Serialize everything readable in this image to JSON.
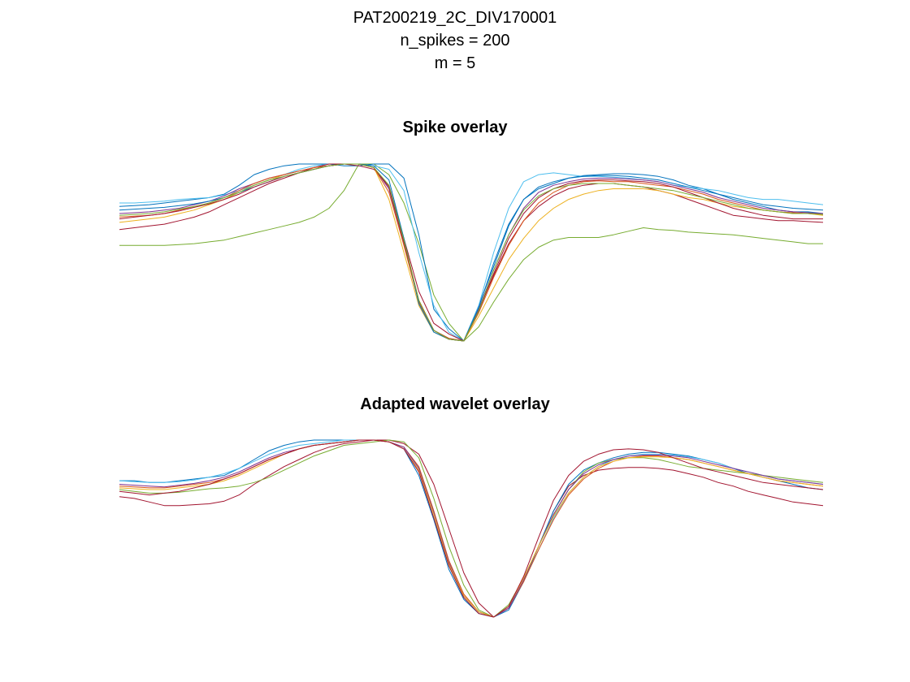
{
  "figure": {
    "suptitle_lines": [
      "PAT200219_2C_DIV170001",
      "n_spikes = 200",
      "m = 5"
    ]
  },
  "colors": {
    "series_palette": [
      "#0072BD",
      "#D95319",
      "#EDB120",
      "#7E2F8E",
      "#77AC30",
      "#4DBEEE",
      "#A2142F"
    ]
  },
  "chart_data": [
    {
      "type": "line",
      "title": "Spike overlay",
      "xlabel": "",
      "ylabel": "",
      "axis_visible": false,
      "grid": false,
      "n_samples": 48,
      "trough_index": 23,
      "xlim": [
        0,
        47
      ],
      "ylim": [
        -1.0,
        0.1
      ],
      "series": [
        {
          "color": "#77AC30",
          "values": [
            -0.46,
            -0.46,
            -0.46,
            -0.46,
            -0.455,
            -0.45,
            -0.44,
            -0.43,
            -0.41,
            -0.39,
            -0.37,
            -0.35,
            -0.33,
            -0.3,
            -0.25,
            -0.15,
            0.0,
            0.0,
            -0.06,
            -0.22,
            -0.45,
            -0.74,
            -0.9,
            -1.0,
            -0.92,
            -0.78,
            -0.65,
            -0.54,
            -0.47,
            -0.43,
            -0.415,
            -0.415,
            -0.415,
            -0.4,
            -0.38,
            -0.36,
            -0.37,
            -0.375,
            -0.385,
            -0.39,
            -0.395,
            -0.4,
            -0.41,
            -0.42,
            -0.43,
            -0.44,
            -0.45,
            -0.45
          ]
        },
        {
          "color": "#0072BD",
          "values": [
            -0.24,
            -0.235,
            -0.23,
            -0.22,
            -0.21,
            -0.2,
            -0.19,
            -0.17,
            -0.12,
            -0.06,
            -0.03,
            -0.01,
            0.0,
            0.0,
            0.0,
            -0.01,
            -0.01,
            0.0,
            0.0,
            -0.08,
            -0.4,
            -0.82,
            -0.93,
            -1.0,
            -0.8,
            -0.58,
            -0.35,
            -0.2,
            -0.14,
            -0.11,
            -0.08,
            -0.065,
            -0.06,
            -0.055,
            -0.055,
            -0.06,
            -0.07,
            -0.09,
            -0.12,
            -0.14,
            -0.17,
            -0.2,
            -0.22,
            -0.24,
            -0.26,
            -0.27,
            -0.27,
            -0.28
          ]
        },
        {
          "color": "#4DBEEE",
          "values": [
            -0.22,
            -0.22,
            -0.215,
            -0.21,
            -0.2,
            -0.195,
            -0.19,
            -0.175,
            -0.15,
            -0.12,
            -0.09,
            -0.06,
            -0.03,
            -0.01,
            0.0,
            0.0,
            0.0,
            -0.01,
            -0.03,
            -0.15,
            -0.5,
            -0.8,
            -0.95,
            -1.0,
            -0.8,
            -0.5,
            -0.25,
            -0.1,
            -0.06,
            -0.05,
            -0.06,
            -0.07,
            -0.07,
            -0.075,
            -0.08,
            -0.09,
            -0.1,
            -0.12,
            -0.13,
            -0.14,
            -0.15,
            -0.17,
            -0.19,
            -0.2,
            -0.2,
            -0.21,
            -0.22,
            -0.23
          ]
        },
        {
          "color": "#A2142F",
          "values": [
            -0.37,
            -0.36,
            -0.35,
            -0.34,
            -0.32,
            -0.3,
            -0.27,
            -0.23,
            -0.19,
            -0.15,
            -0.11,
            -0.08,
            -0.05,
            -0.02,
            0.0,
            0.0,
            -0.01,
            -0.03,
            -0.12,
            -0.42,
            -0.72,
            -0.9,
            -0.96,
            -1.0,
            -0.82,
            -0.63,
            -0.45,
            -0.32,
            -0.24,
            -0.18,
            -0.14,
            -0.12,
            -0.11,
            -0.11,
            -0.12,
            -0.13,
            -0.15,
            -0.17,
            -0.2,
            -0.23,
            -0.26,
            -0.29,
            -0.3,
            -0.31,
            -0.32,
            -0.32,
            -0.325,
            -0.33
          ]
        },
        {
          "color": "#EDB120",
          "values": [
            -0.33,
            -0.32,
            -0.31,
            -0.3,
            -0.28,
            -0.26,
            -0.23,
            -0.2,
            -0.16,
            -0.12,
            -0.09,
            -0.06,
            -0.04,
            -0.02,
            -0.01,
            0.0,
            0.0,
            -0.02,
            -0.2,
            -0.5,
            -0.8,
            -0.95,
            -0.99,
            -1.0,
            -0.86,
            -0.7,
            -0.54,
            -0.42,
            -0.32,
            -0.25,
            -0.2,
            -0.17,
            -0.15,
            -0.14,
            -0.14,
            -0.14,
            -0.15,
            -0.17,
            -0.19,
            -0.2,
            -0.22,
            -0.24,
            -0.25,
            -0.26,
            -0.27,
            -0.28,
            -0.28,
            -0.29
          ]
        },
        {
          "color": "#7E2F8E",
          "values": [
            -0.28,
            -0.275,
            -0.27,
            -0.26,
            -0.25,
            -0.23,
            -0.21,
            -0.18,
            -0.14,
            -0.11,
            -0.08,
            -0.06,
            -0.04,
            -0.02,
            -0.01,
            0.0,
            0.0,
            -0.02,
            -0.14,
            -0.45,
            -0.78,
            -0.94,
            -0.985,
            -1.0,
            -0.82,
            -0.6,
            -0.4,
            -0.25,
            -0.16,
            -0.12,
            -0.1,
            -0.085,
            -0.08,
            -0.08,
            -0.085,
            -0.09,
            -0.1,
            -0.12,
            -0.14,
            -0.16,
            -0.19,
            -0.21,
            -0.23,
            -0.25,
            -0.26,
            -0.27,
            -0.275,
            -0.28
          ]
        },
        {
          "color": "#D95319",
          "values": [
            -0.3,
            -0.295,
            -0.29,
            -0.28,
            -0.26,
            -0.24,
            -0.22,
            -0.19,
            -0.15,
            -0.11,
            -0.08,
            -0.06,
            -0.04,
            -0.02,
            -0.01,
            0.0,
            0.0,
            -0.02,
            -0.16,
            -0.46,
            -0.78,
            -0.94,
            -0.985,
            -1.0,
            -0.84,
            -0.64,
            -0.46,
            -0.32,
            -0.22,
            -0.16,
            -0.12,
            -0.1,
            -0.095,
            -0.1,
            -0.1,
            -0.11,
            -0.12,
            -0.13,
            -0.15,
            -0.17,
            -0.2,
            -0.22,
            -0.24,
            -0.26,
            -0.27,
            -0.275,
            -0.28,
            -0.285
          ]
        },
        {
          "color": "#0072BD",
          "values": [
            -0.26,
            -0.255,
            -0.25,
            -0.245,
            -0.235,
            -0.225,
            -0.21,
            -0.19,
            -0.16,
            -0.13,
            -0.1,
            -0.07,
            -0.05,
            -0.03,
            -0.01,
            0.0,
            0.0,
            -0.01,
            -0.09,
            -0.42,
            -0.79,
            -0.95,
            -0.99,
            -1.0,
            -0.81,
            -0.56,
            -0.34,
            -0.2,
            -0.13,
            -0.1,
            -0.08,
            -0.07,
            -0.065,
            -0.065,
            -0.07,
            -0.08,
            -0.09,
            -0.11,
            -0.13,
            -0.15,
            -0.17,
            -0.19,
            -0.21,
            -0.23,
            -0.24,
            -0.25,
            -0.255,
            -0.26
          ]
        },
        {
          "color": "#A2142F",
          "values": [
            -0.31,
            -0.3,
            -0.29,
            -0.28,
            -0.265,
            -0.245,
            -0.225,
            -0.2,
            -0.17,
            -0.13,
            -0.1,
            -0.07,
            -0.05,
            -0.03,
            -0.01,
            0.0,
            0.0,
            -0.02,
            -0.13,
            -0.44,
            -0.77,
            -0.94,
            -0.99,
            -1.0,
            -0.83,
            -0.62,
            -0.42,
            -0.28,
            -0.19,
            -0.14,
            -0.11,
            -0.095,
            -0.09,
            -0.09,
            -0.095,
            -0.1,
            -0.11,
            -0.13,
            -0.16,
            -0.19,
            -0.22,
            -0.25,
            -0.27,
            -0.29,
            -0.3,
            -0.31,
            -0.31,
            -0.31
          ]
        },
        {
          "color": "#77AC30",
          "values": [
            -0.29,
            -0.285,
            -0.28,
            -0.27,
            -0.255,
            -0.24,
            -0.22,
            -0.19,
            -0.16,
            -0.12,
            -0.09,
            -0.07,
            -0.05,
            -0.03,
            -0.01,
            0.0,
            0.0,
            -0.02,
            -0.12,
            -0.43,
            -0.77,
            -0.94,
            -0.99,
            -1.0,
            -0.83,
            -0.6,
            -0.4,
            -0.26,
            -0.18,
            -0.14,
            -0.12,
            -0.11,
            -0.11,
            -0.11,
            -0.12,
            -0.13,
            -0.14,
            -0.15,
            -0.17,
            -0.19,
            -0.21,
            -0.23,
            -0.25,
            -0.26,
            -0.27,
            -0.28,
            -0.28,
            -0.285
          ]
        }
      ]
    },
    {
      "type": "line",
      "title": "Adapted wavelet overlay",
      "xlabel": "",
      "ylabel": "",
      "axis_visible": false,
      "grid": false,
      "n_samples": 48,
      "trough_index": 25,
      "xlim": [
        0,
        47
      ],
      "ylim": [
        -1.0,
        0.1
      ],
      "series": [
        {
          "color": "#A2142F",
          "values": [
            -0.32,
            -0.33,
            -0.35,
            -0.37,
            -0.37,
            -0.365,
            -0.36,
            -0.345,
            -0.31,
            -0.25,
            -0.2,
            -0.15,
            -0.11,
            -0.07,
            -0.04,
            -0.02,
            -0.01,
            0.0,
            0.0,
            -0.02,
            -0.08,
            -0.25,
            -0.5,
            -0.75,
            -0.92,
            -1.0,
            -0.95,
            -0.8,
            -0.6,
            -0.4,
            -0.26,
            -0.2,
            -0.17,
            -0.16,
            -0.155,
            -0.155,
            -0.16,
            -0.17,
            -0.19,
            -0.21,
            -0.24,
            -0.26,
            -0.29,
            -0.31,
            -0.33,
            -0.35,
            -0.36,
            -0.37
          ]
        },
        {
          "color": "#0072BD",
          "values": [
            -0.23,
            -0.23,
            -0.24,
            -0.24,
            -0.23,
            -0.22,
            -0.21,
            -0.2,
            -0.16,
            -0.11,
            -0.06,
            -0.03,
            -0.01,
            0.0,
            0.0,
            0.0,
            0.0,
            0.0,
            -0.01,
            -0.05,
            -0.2,
            -0.45,
            -0.73,
            -0.9,
            -0.98,
            -1.0,
            -0.96,
            -0.8,
            -0.6,
            -0.4,
            -0.25,
            -0.17,
            -0.13,
            -0.1,
            -0.08,
            -0.07,
            -0.07,
            -0.08,
            -0.09,
            -0.11,
            -0.13,
            -0.16,
            -0.19,
            -0.21,
            -0.23,
            -0.25,
            -0.27,
            -0.28
          ]
        },
        {
          "color": "#77AC30",
          "values": [
            -0.28,
            -0.29,
            -0.3,
            -0.3,
            -0.295,
            -0.285,
            -0.275,
            -0.27,
            -0.26,
            -0.24,
            -0.21,
            -0.17,
            -0.13,
            -0.09,
            -0.06,
            -0.03,
            -0.02,
            -0.01,
            0.0,
            -0.01,
            -0.1,
            -0.33,
            -0.6,
            -0.82,
            -0.96,
            -1.0,
            -0.93,
            -0.78,
            -0.6,
            -0.42,
            -0.28,
            -0.18,
            -0.13,
            -0.11,
            -0.1,
            -0.1,
            -0.11,
            -0.13,
            -0.15,
            -0.16,
            -0.17,
            -0.18,
            -0.19,
            -0.2,
            -0.21,
            -0.22,
            -0.23,
            -0.24
          ]
        },
        {
          "color": "#4DBEEE",
          "values": [
            -0.23,
            -0.235,
            -0.24,
            -0.24,
            -0.235,
            -0.225,
            -0.21,
            -0.19,
            -0.16,
            -0.12,
            -0.08,
            -0.05,
            -0.03,
            -0.02,
            -0.01,
            0.0,
            0.0,
            0.0,
            -0.01,
            -0.04,
            -0.16,
            -0.42,
            -0.7,
            -0.88,
            -0.97,
            -1.0,
            -0.95,
            -0.8,
            -0.62,
            -0.44,
            -0.3,
            -0.21,
            -0.15,
            -0.11,
            -0.09,
            -0.08,
            -0.08,
            -0.085,
            -0.095,
            -0.11,
            -0.13,
            -0.16,
            -0.18,
            -0.2,
            -0.22,
            -0.23,
            -0.24,
            -0.25
          ]
        },
        {
          "color": "#D95319",
          "values": [
            -0.26,
            -0.265,
            -0.27,
            -0.27,
            -0.26,
            -0.25,
            -0.24,
            -0.22,
            -0.19,
            -0.15,
            -0.11,
            -0.08,
            -0.05,
            -0.03,
            -0.02,
            -0.01,
            0.0,
            0.0,
            -0.01,
            -0.04,
            -0.15,
            -0.4,
            -0.68,
            -0.87,
            -0.97,
            -1.0,
            -0.95,
            -0.8,
            -0.62,
            -0.45,
            -0.31,
            -0.22,
            -0.16,
            -0.12,
            -0.1,
            -0.09,
            -0.09,
            -0.1,
            -0.11,
            -0.13,
            -0.15,
            -0.17,
            -0.19,
            -0.21,
            -0.23,
            -0.24,
            -0.25,
            -0.26
          ]
        },
        {
          "color": "#7E2F8E",
          "values": [
            -0.25,
            -0.255,
            -0.26,
            -0.265,
            -0.255,
            -0.245,
            -0.23,
            -0.21,
            -0.18,
            -0.14,
            -0.1,
            -0.07,
            -0.05,
            -0.03,
            -0.02,
            -0.01,
            0.0,
            0.0,
            -0.01,
            -0.04,
            -0.16,
            -0.41,
            -0.69,
            -0.88,
            -0.97,
            -1.0,
            -0.95,
            -0.79,
            -0.6,
            -0.42,
            -0.28,
            -0.19,
            -0.14,
            -0.11,
            -0.09,
            -0.085,
            -0.085,
            -0.09,
            -0.1,
            -0.12,
            -0.14,
            -0.16,
            -0.18,
            -0.2,
            -0.22,
            -0.23,
            -0.24,
            -0.25
          ]
        },
        {
          "color": "#EDB120",
          "values": [
            -0.27,
            -0.275,
            -0.28,
            -0.28,
            -0.27,
            -0.26,
            -0.25,
            -0.23,
            -0.2,
            -0.16,
            -0.12,
            -0.08,
            -0.05,
            -0.03,
            -0.02,
            -0.01,
            0.0,
            0.0,
            -0.01,
            -0.05,
            -0.17,
            -0.42,
            -0.7,
            -0.88,
            -0.97,
            -1.0,
            -0.94,
            -0.78,
            -0.6,
            -0.43,
            -0.3,
            -0.21,
            -0.15,
            -0.12,
            -0.1,
            -0.095,
            -0.095,
            -0.1,
            -0.11,
            -0.13,
            -0.15,
            -0.17,
            -0.19,
            -0.21,
            -0.23,
            -0.24,
            -0.25,
            -0.26
          ]
        },
        {
          "color": "#A2142F",
          "values": [
            -0.29,
            -0.3,
            -0.31,
            -0.3,
            -0.29,
            -0.27,
            -0.25,
            -0.22,
            -0.19,
            -0.15,
            -0.11,
            -0.08,
            -0.05,
            -0.03,
            -0.02,
            -0.01,
            0.0,
            0.0,
            -0.01,
            -0.05,
            -0.18,
            -0.44,
            -0.71,
            -0.89,
            -0.98,
            -1.0,
            -0.94,
            -0.77,
            -0.55,
            -0.34,
            -0.2,
            -0.12,
            -0.08,
            -0.055,
            -0.05,
            -0.055,
            -0.07,
            -0.1,
            -0.13,
            -0.16,
            -0.18,
            -0.2,
            -0.22,
            -0.24,
            -0.25,
            -0.26,
            -0.27,
            -0.28
          ]
        }
      ]
    }
  ]
}
